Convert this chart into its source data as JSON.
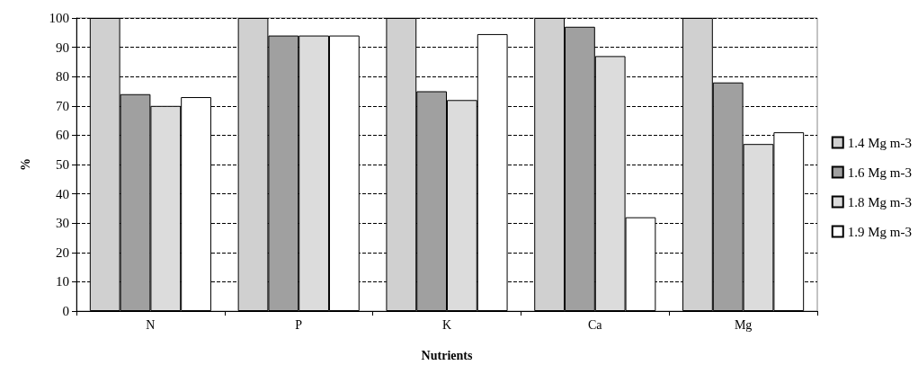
{
  "chart_data": {
    "type": "bar",
    "xlabel": "Nutrients",
    "ylabel": "%",
    "categories": [
      "N",
      "P",
      "K",
      "Ca",
      "Mg"
    ],
    "series": [
      {
        "name": "1.4 Mg m-3",
        "color": "#d0d0d0",
        "values": [
          100,
          100,
          100,
          100,
          100
        ]
      },
      {
        "name": "1.6 Mg m-3",
        "color": "#a0a0a0",
        "values": [
          74,
          94,
          75,
          97,
          78
        ]
      },
      {
        "name": "1.8 Mg m-3",
        "color": "#dcdcdc",
        "values": [
          70,
          94,
          72,
          87,
          57
        ]
      },
      {
        "name": "1.9 Mg m-3",
        "color": "#ffffff",
        "values": [
          73,
          94,
          94.5,
          32,
          61
        ]
      }
    ],
    "ylim": [
      0,
      100
    ],
    "yticks": [
      0,
      10,
      20,
      30,
      40,
      50,
      60,
      70,
      80,
      90,
      100
    ],
    "grid": "y",
    "legend": "right"
  }
}
